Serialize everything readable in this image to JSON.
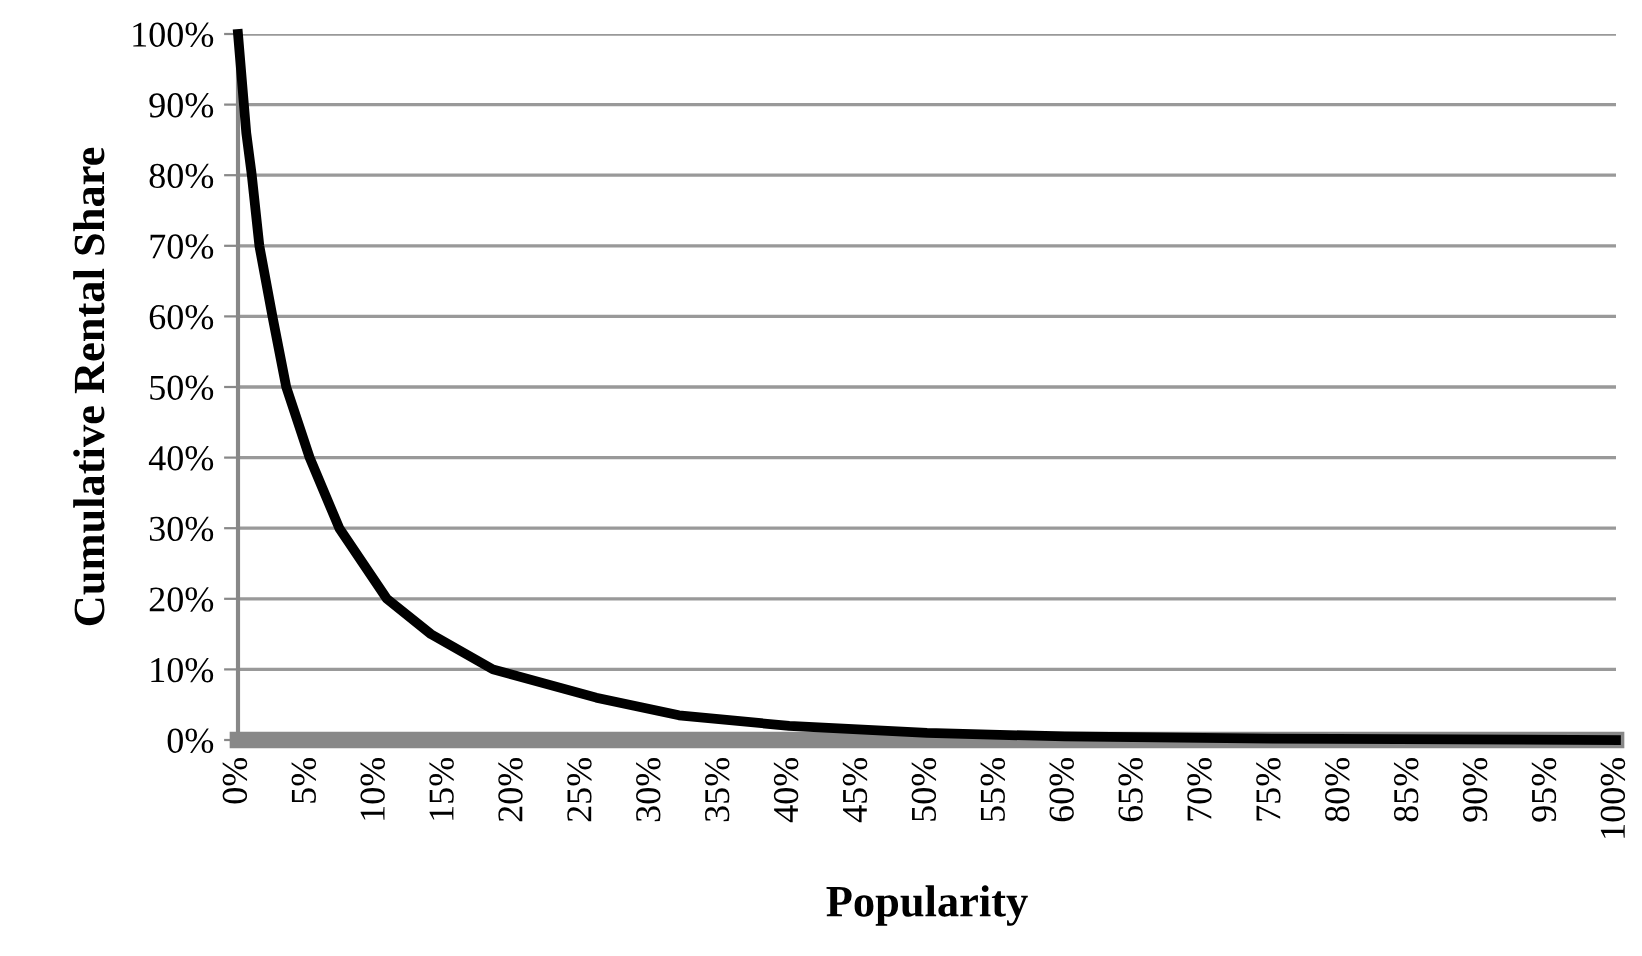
{
  "chart_data": {
    "type": "line",
    "xlabel": "Popularity",
    "ylabel": "Cumulative Rental Share",
    "series": [
      {
        "color": "#000000",
        "x": [
          0,
          0.6,
          1,
          1.55,
          2.5,
          3.5,
          5.2,
          7.35,
          10.8,
          14,
          18.5,
          26,
          32,
          40,
          50,
          60,
          75,
          100
        ],
        "values": [
          100,
          86,
          80,
          70,
          60,
          50,
          40,
          30,
          20,
          15,
          10,
          6,
          3.5,
          2,
          1,
          0.5,
          0.2,
          0
        ]
      }
    ],
    "xlim": [
      0,
      100
    ],
    "ylim": [
      0,
      100
    ],
    "xticks": [
      {
        "value": 0,
        "label": "0%"
      },
      {
        "value": 5,
        "label": "5%"
      },
      {
        "value": 10,
        "label": "10%"
      },
      {
        "value": 15,
        "label": "15%"
      },
      {
        "value": 20,
        "label": "20%"
      },
      {
        "value": 25,
        "label": "25%"
      },
      {
        "value": 30,
        "label": "30%"
      },
      {
        "value": 35,
        "label": "35%"
      },
      {
        "value": 40,
        "label": "40%"
      },
      {
        "value": 45,
        "label": "45%"
      },
      {
        "value": 50,
        "label": "50%"
      },
      {
        "value": 55,
        "label": "55%"
      },
      {
        "value": 60,
        "label": "60%"
      },
      {
        "value": 65,
        "label": "65%"
      },
      {
        "value": 70,
        "label": "70%"
      },
      {
        "value": 75,
        "label": "75%"
      },
      {
        "value": 80,
        "label": "80%"
      },
      {
        "value": 85,
        "label": "85%"
      },
      {
        "value": 90,
        "label": "90%"
      },
      {
        "value": 95,
        "label": "95%"
      },
      {
        "value": 100,
        "label": "100%"
      }
    ],
    "yticks": [
      {
        "value": 0,
        "label": "0%"
      },
      {
        "value": 10,
        "label": "10%"
      },
      {
        "value": 20,
        "label": "20%"
      },
      {
        "value": 30,
        "label": "30%"
      },
      {
        "value": 40,
        "label": "40%"
      },
      {
        "value": 50,
        "label": "50%"
      },
      {
        "value": 60,
        "label": "60%"
      },
      {
        "value": 70,
        "label": "70%"
      },
      {
        "value": 80,
        "label": "80%"
      },
      {
        "value": 90,
        "label": "90%"
      },
      {
        "value": 100,
        "label": "100%"
      }
    ],
    "grid": "y",
    "marker": "none",
    "line_style": "solid"
  }
}
